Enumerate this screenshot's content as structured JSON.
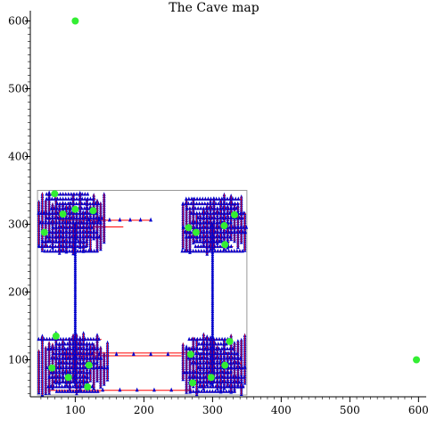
{
  "chart_data": {
    "type": "scatter",
    "title": "The Cave map",
    "xlabel": "",
    "ylabel": "",
    "xlim": [
      45,
      610
    ],
    "ylim": [
      45,
      620
    ],
    "x_ticks": [
      100,
      200,
      300,
      400,
      500,
      600
    ],
    "y_ticks": [
      100,
      200,
      300,
      400,
      500,
      600
    ],
    "grid": false,
    "colors": {
      "path_line": "#ff0000",
      "marker": "#0000cc",
      "room": "#33ee33",
      "box": "#999999"
    },
    "cave_box": {
      "x": [
        45,
        350
      ],
      "y": [
        48,
        350
      ]
    },
    "rooms": [
      {
        "x": 100,
        "y": 600
      },
      {
        "x": 597,
        "y": 100
      },
      {
        "x": 70,
        "y": 345
      },
      {
        "x": 82,
        "y": 315
      },
      {
        "x": 100,
        "y": 322
      },
      {
        "x": 126,
        "y": 320
      },
      {
        "x": 55,
        "y": 288
      },
      {
        "x": 265,
        "y": 295
      },
      {
        "x": 276,
        "y": 288
      },
      {
        "x": 317,
        "y": 298
      },
      {
        "x": 332,
        "y": 314
      },
      {
        "x": 318,
        "y": 270
      },
      {
        "x": 72,
        "y": 135
      },
      {
        "x": 66,
        "y": 88
      },
      {
        "x": 90,
        "y": 74
      },
      {
        "x": 120,
        "y": 92
      },
      {
        "x": 118,
        "y": 60
      },
      {
        "x": 268,
        "y": 108
      },
      {
        "x": 325,
        "y": 127
      },
      {
        "x": 318,
        "y": 92
      },
      {
        "x": 298,
        "y": 74
      },
      {
        "x": 271,
        "y": 66
      }
    ],
    "corridors": [
      {
        "x": [
          75,
          210
        ],
        "y": [
          306,
          306
        ]
      },
      {
        "x": [
          75,
          170
        ],
        "y": [
          296,
          296
        ]
      },
      {
        "x": [
          80,
          260
        ],
        "y": [
          110,
          110
        ]
      },
      {
        "x": [
          80,
          255
        ],
        "y": [
          106,
          106
        ]
      },
      {
        "x": [
          60,
          270
        ],
        "y": [
          55,
          55
        ]
      },
      {
        "x": [
          100,
          100
        ],
        "y": [
          60,
          300
        ]
      },
      {
        "x": [
          300,
          300
        ],
        "y": [
          60,
          300
        ]
      }
    ],
    "corridor_markers": [
      {
        "x": [
          120,
          135,
          150,
          165,
          180,
          195,
          210
        ],
        "y": 306
      },
      {
        "x": [
          135,
          160,
          185,
          210,
          235
        ],
        "y": 108
      },
      {
        "x": [
          140,
          165,
          190,
          215,
          240
        ],
        "y": 55
      }
    ],
    "clusters": [
      {
        "x": [
          45,
          145
        ],
        "y": [
          255,
          350
        ]
      },
      {
        "x": [
          255,
          350
        ],
        "y": [
          255,
          345
        ]
      },
      {
        "x": [
          45,
          150
        ],
        "y": [
          48,
          140
        ]
      },
      {
        "x": [
          255,
          350
        ],
        "y": [
          48,
          140
        ]
      }
    ]
  }
}
